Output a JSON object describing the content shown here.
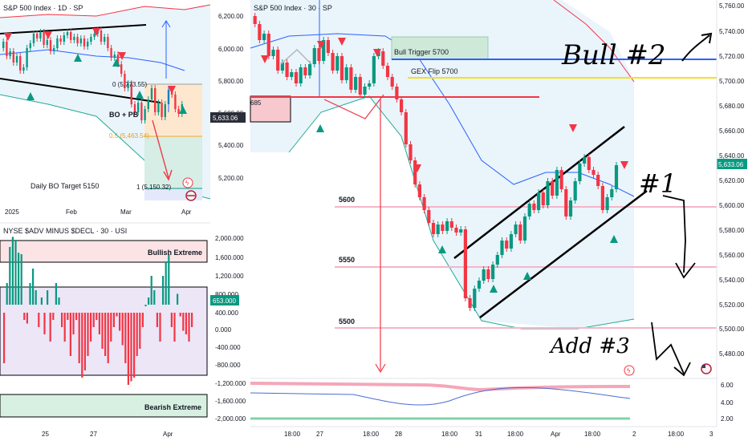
{
  "colors": {
    "up": "#089981",
    "down": "#f23645",
    "blue": "#2962ff",
    "yellow": "#f5e11b",
    "pink": "#f3b6c8",
    "bandFill": "#e8f4fb",
    "tealLine": "#22ab94",
    "redLine": "#f23645"
  },
  "topLeft": {
    "title": "S&P 500 Index · 1D · SP",
    "annotations": {
      "bo_pb": "BO + PB",
      "fib0": "0 (5,773.55)",
      "fib05": "0.5 (5,463.54)",
      "fib1": "1 (5,150.32)",
      "daily_target": "Daily BO Target 5150"
    },
    "x_labels": [
      "2025",
      "Feb",
      "Mar",
      "Apr"
    ],
    "y_ticks": [
      "6,200.00",
      "6,000.00",
      "5,800.00",
      "5,600.00",
      "5,400.00",
      "5,200.00"
    ],
    "price_tag": "5,633.06"
  },
  "bottomLeft": {
    "title": "NYSE $ADV MINUS $DECL · 30 · USI",
    "zones": {
      "bullish": "Bullish Extreme",
      "bearish": "Bearish Extreme"
    },
    "y_ticks": [
      "2,000.000",
      "1,600.000",
      "1,200.000",
      "800.000",
      "400.000",
      "0.000",
      "-400.000",
      "-800.000",
      "-1,200.000",
      "-1,600.000",
      "-2,000.000"
    ],
    "x_labels": [
      "25",
      "27",
      "Apr"
    ],
    "value_tag": "653.000"
  },
  "right": {
    "title": "S&P 500 Index · 30 · SP",
    "levels": {
      "bull_trigger": "Bull Trigger 5700",
      "gex_flip": "GEX Flip 5700",
      "left_box": "685",
      "l5600": "5600",
      "l5550": "5550",
      "l5500": "5500"
    },
    "y_ticks": [
      "5,760.00",
      "5,740.00",
      "5,720.00",
      "5,700.00",
      "5,680.00",
      "5,660.00",
      "5,640.00",
      "5,620.00",
      "5,600.00",
      "5,580.00",
      "5,560.00",
      "5,540.00",
      "5,520.00",
      "5,500.00",
      "5,480.00"
    ],
    "osc_ticks": [
      "6.00",
      "4.00",
      "2.00"
    ],
    "x_labels": [
      "18:00",
      "27",
      "18:00",
      "28",
      "18:00",
      "31",
      "18:00",
      "Apr",
      "18:00",
      "2",
      "18:00",
      "3"
    ],
    "price_tag": "5,633.06",
    "handwriting": {
      "bull2": "Bull #2",
      "one": "#1",
      "add3": "Add #3"
    }
  },
  "chart_data": [
    {
      "type": "candlestick",
      "title": "S&P 500 Index · 1D · SP",
      "ylim": [
        5100,
        6250
      ],
      "y_ticks": [
        6200,
        6000,
        5800,
        5600,
        5400,
        5200
      ],
      "x_labels": [
        "2025",
        "Feb",
        "Mar",
        "Apr"
      ],
      "annotations": [
        "BO + PB",
        "0 (5,773.55)",
        "0.5 (5,463.54)",
        "1 (5,150.32)",
        "Daily BO Target 5150"
      ],
      "last_price": 5633.06
    },
    {
      "type": "bar",
      "title": "NYSE $ADV MINUS $DECL · 30 · USI",
      "ylim": [
        -2000,
        2000
      ],
      "y_ticks": [
        2000,
        1600,
        1200,
        800,
        400,
        0,
        -400,
        -800,
        -1200,
        -1600,
        -2000
      ],
      "zones": [
        {
          "name": "Bullish Extreme",
          "from": 1000,
          "to": 2000
        },
        {
          "name": "Bearish Extreme",
          "from": -2000,
          "to": -1000
        }
      ],
      "last_value": 653
    },
    {
      "type": "candlestick",
      "title": "S&P 500 Index · 30 · SP",
      "ylim": [
        5470,
        5765
      ],
      "y_ticks": [
        5760,
        5740,
        5720,
        5700,
        5680,
        5660,
        5640,
        5620,
        5600,
        5580,
        5560,
        5540,
        5520,
        5500,
        5480
      ],
      "levels": [
        {
          "name": "Bull Trigger 5700",
          "value": 5717
        },
        {
          "name": "GEX Flip 5700",
          "value": 5703
        },
        {
          "name": "5600",
          "value": 5598
        },
        {
          "name": "5550",
          "value": 5548
        },
        {
          "name": "5500",
          "value": 5500
        }
      ],
      "last_price": 5633.06
    }
  ]
}
